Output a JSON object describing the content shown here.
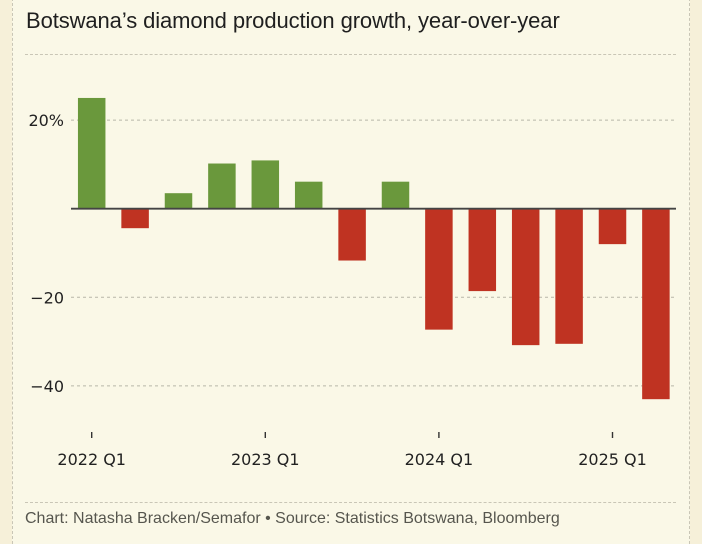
{
  "chart_data": {
    "type": "bar",
    "title": "Botswana’s diamond production growth, year-over-year",
    "xlabel": "",
    "ylabel": "",
    "ylim": [
      -47,
      26
    ],
    "grid": true,
    "categories": [
      "2022 Q1",
      "2022 Q2",
      "2022 Q3",
      "2022 Q4",
      "2023 Q1",
      "2023 Q2",
      "2023 Q3",
      "2023 Q4",
      "2024 Q1",
      "2024 Q2",
      "2024 Q3",
      "2024 Q4",
      "2025 Q1",
      "2025 Q2"
    ],
    "values": [
      25.0,
      -4.4,
      3.5,
      10.2,
      10.9,
      6.1,
      -11.7,
      6.1,
      -27.3,
      -18.6,
      -30.8,
      -30.5,
      -8.0,
      -43.0
    ],
    "y_ticks": [
      {
        "value": 20,
        "label": "20%"
      },
      {
        "value": -20,
        "label": "−20"
      },
      {
        "value": -40,
        "label": "−40"
      }
    ],
    "x_ticks": [
      {
        "index": 0,
        "label": "2022 Q1"
      },
      {
        "index": 4,
        "label": "2023 Q1"
      },
      {
        "index": 8,
        "label": "2024 Q1"
      },
      {
        "index": 12,
        "label": "2025 Q1"
      }
    ],
    "colors": {
      "positive": "#6a983c",
      "negative": "#bf3322",
      "zero_line": "#444444",
      "grid": "#b8b6a8"
    },
    "source": "Chart: Natasha Bracken/Semafor • Source: Statistics Botswana, Bloomberg"
  }
}
